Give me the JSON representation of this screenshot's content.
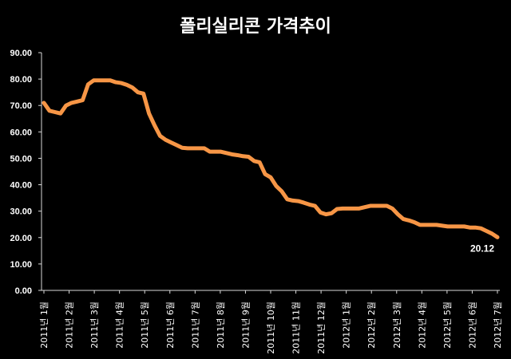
{
  "chart_data": {
    "type": "line",
    "title": "폴리실리콘 가격추이",
    "xlabel": "",
    "ylabel": "",
    "ylim": [
      0,
      90
    ],
    "yticks": [
      "0.00",
      "10.00",
      "20.00",
      "30.00",
      "40.00",
      "50.00",
      "60.00",
      "70.00",
      "80.00",
      "90.00"
    ],
    "x_tick_labels": [
      "2011년 1월",
      "2011년 2월",
      "2011년 3월",
      "2011년 4월",
      "2011년 5월",
      "2011년 6월",
      "2011년 7월",
      "2011년 8월",
      "2011년 9월",
      "2011년 10월",
      "2011년 11월",
      "2011년 12월",
      "2012년 1월",
      "2012년 2월",
      "2012년 3월",
      "2012년 4월",
      "2012년 5월",
      "2012년 6월",
      "2012년 7월"
    ],
    "grid": false,
    "legend": "none",
    "colors": {
      "background": "#000000",
      "plot_background": "#000000",
      "axis": "#d9d9d9",
      "line": "#f79646",
      "text": "#ffffff"
    },
    "series": [
      {
        "values": [
          71.0,
          68.0,
          67.5,
          67.0,
          70.0,
          71.0,
          71.5,
          72.0,
          78.0,
          79.5,
          79.5,
          79.5,
          79.5,
          78.8,
          78.5,
          77.8,
          76.8,
          75.0,
          74.5,
          67.0,
          62.5,
          58.5,
          57.0,
          56.0,
          55.0,
          54.0,
          53.8,
          53.8,
          53.8,
          53.8,
          52.5,
          52.5,
          52.5,
          52.0,
          51.5,
          51.2,
          50.8,
          50.6,
          49.0,
          48.5,
          44.0,
          42.8,
          39.5,
          37.5,
          34.5,
          34.0,
          33.8,
          33.2,
          32.5,
          32.0,
          29.5,
          28.8,
          29.2,
          30.8,
          31.0,
          31.0,
          31.0,
          31.0,
          31.5,
          32.0,
          32.0,
          32.0,
          32.0,
          31.0,
          28.8,
          27.0,
          26.5,
          25.8,
          24.8,
          24.8,
          24.8,
          24.8,
          24.5,
          24.2,
          24.2,
          24.2,
          24.2,
          23.8,
          23.8,
          23.5,
          22.5,
          21.5,
          20.12
        ]
      }
    ],
    "data_label": {
      "text": "20.12",
      "index": 82
    }
  }
}
